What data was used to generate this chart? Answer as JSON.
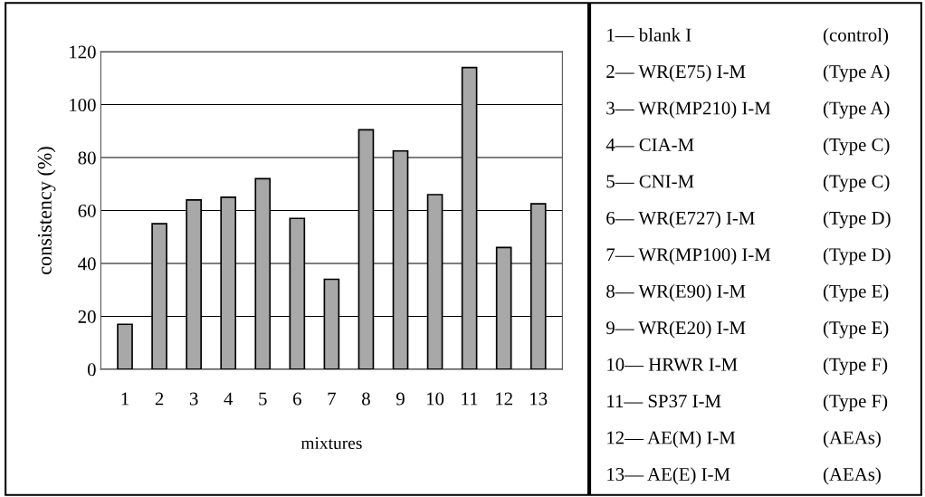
{
  "chart_data": [
    {
      "type": "bar",
      "xlabel": "mixtures",
      "ylabel": "consistency (%)",
      "categories": [
        "1",
        "2",
        "3",
        "4",
        "5",
        "6",
        "7",
        "8",
        "9",
        "10",
        "11",
        "12",
        "13"
      ],
      "values": [
        17,
        55,
        64,
        65,
        72,
        57,
        34,
        90.5,
        82.5,
        66,
        114,
        46,
        62.5
      ],
      "color": "#a8a8a8",
      "ylim": [
        0,
        120
      ],
      "yticks": [
        0,
        20,
        40,
        60,
        80,
        100,
        120
      ],
      "grid": "y"
    },
    {
      "type": "other",
      "annotations": [
        "1— blank I",
        "(control)",
        "2— WR(E75) I-M",
        "(Type A)",
        "3— WR(MP210) I-M",
        "(Type A)",
        "4— CIA-M",
        "(Type C)",
        "5— CNI-M",
        "(Type C)",
        "6— WR(E727) I-M",
        "(Type D)",
        "7— WR(MP100) I-M",
        "(Type D)",
        "8— WR(E90) I-M",
        "(Type E)",
        "9— WR(E20) I-M",
        "(Type E)",
        "10— HRWR I-M",
        "(Type F)",
        "11— SP37 I-M",
        "(Type F)",
        "12— AE(M) I-M",
        "(AEAs)",
        "13— AE(E) I-M",
        "(AEAs)"
      ]
    }
  ]
}
